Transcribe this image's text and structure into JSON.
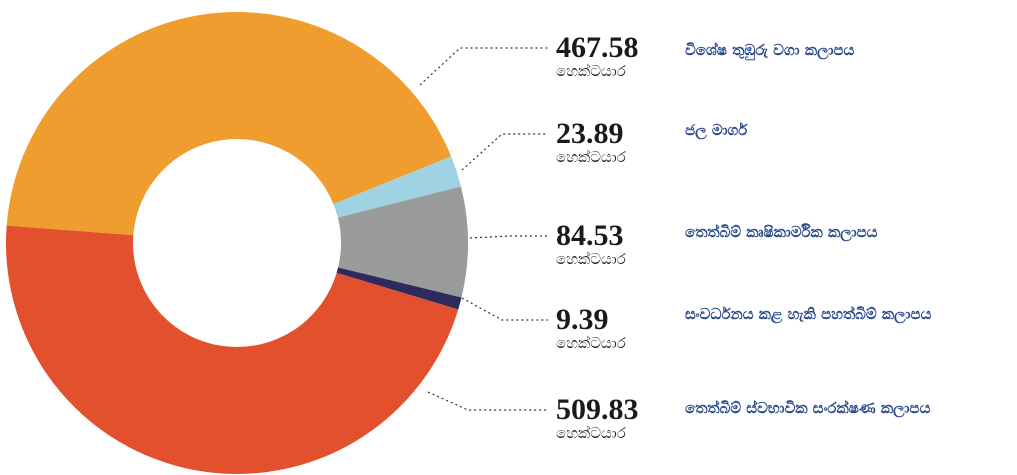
{
  "chart_data": {
    "type": "pie",
    "unit": "හෙක්ටයාර",
    "categories": [
      "විශේෂ තුඹුරු වගා කලාපය",
      "ජල මාර්ග",
      "තෙත්බිම් කෘෂිකාර්මික කලාපය",
      "සංවර්ධනය කළ හැකි පහත්බිම් කලාපය",
      "තෙත්බිම් ස්වභාවික සංරක්ෂණ කලාපය"
    ],
    "values": [
      467.58,
      23.89,
      84.53,
      9.39,
      509.83
    ],
    "colors": [
      "#ef9d2f",
      "#9fd3e3",
      "#9a9b9b",
      "#2e2a5e",
      "#e2502e"
    ]
  }
}
